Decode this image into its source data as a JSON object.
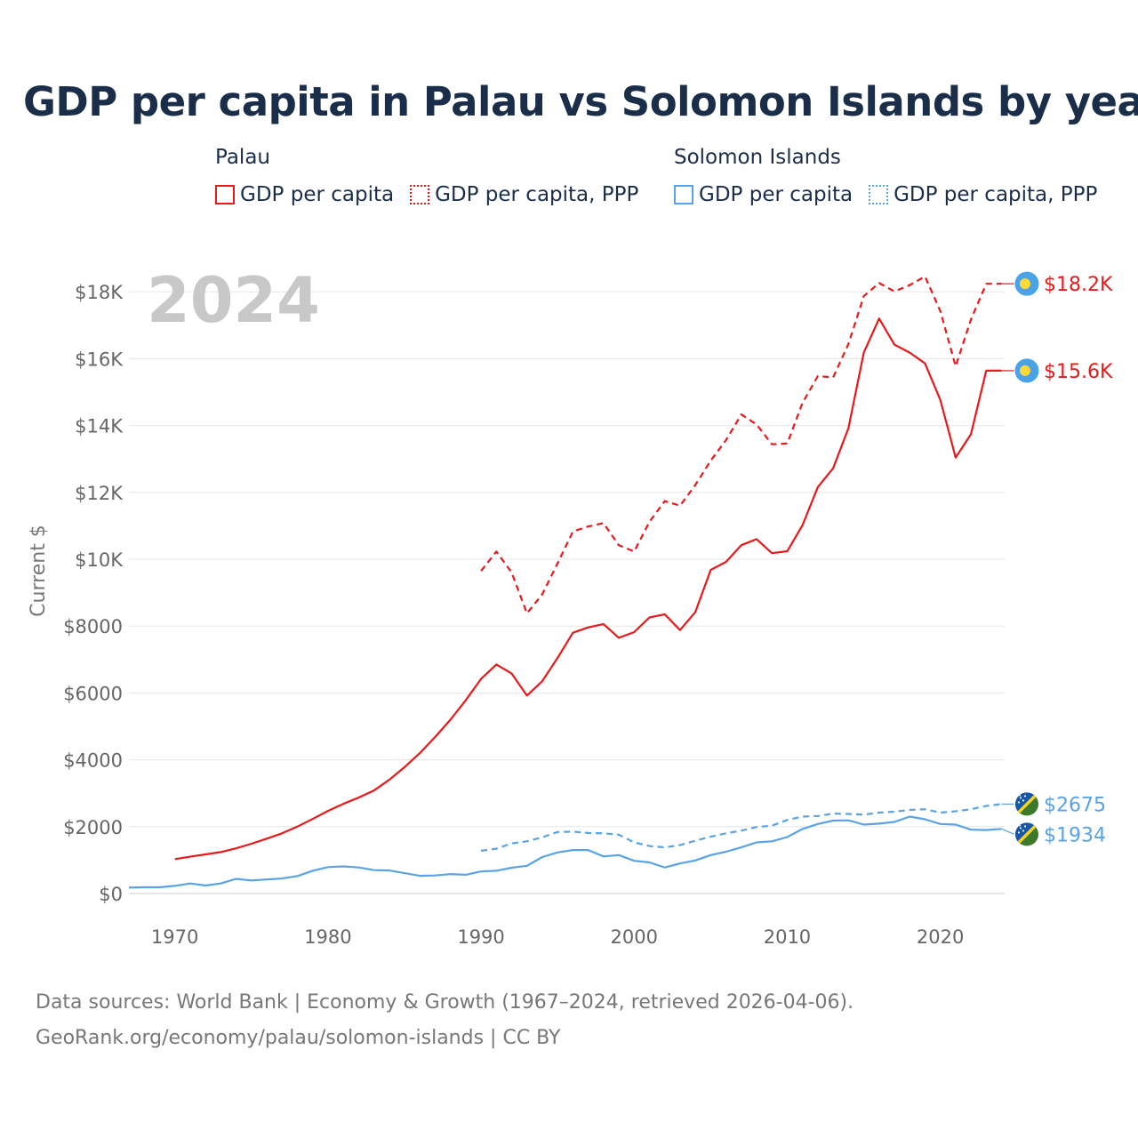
{
  "title": "GDP per capita in Palau vs Solomon Islands by year",
  "legend": {
    "groups": [
      {
        "name": "Palau",
        "items": [
          {
            "label": "GDP per capita",
            "color": "#e8191b",
            "style": "solid"
          },
          {
            "label": "GDP per capita, PPP",
            "color": "#e8191b",
            "style": "dotted"
          }
        ]
      },
      {
        "name": "Solomon Islands",
        "items": [
          {
            "label": "GDP per capita",
            "color": "#5aa2e6",
            "style": "solid"
          },
          {
            "label": "GDP per capita, PPP",
            "color": "#5aa2e6",
            "style": "dotted"
          }
        ]
      }
    ]
  },
  "source": {
    "line1": "Data sources: World Bank | Economy & Growth (1967–2024, retrieved 2026-04-06).",
    "line2": "GeoRank.org/economy/palau/solomon-islands | CC BY"
  },
  "chart_data": {
    "type": "line",
    "title": "GDP per capita in Palau vs Solomon Islands by year",
    "xlabel": "",
    "ylabel": "Current $",
    "xlim": [
      1967,
      2024
    ],
    "ylim": [
      0,
      19000
    ],
    "grid": true,
    "current_year": "2024",
    "x_ticks": [
      1970,
      1980,
      1990,
      2000,
      2010,
      2020
    ],
    "y_ticks": [
      {
        "value": 0,
        "label": "$0"
      },
      {
        "value": 2000,
        "label": "$2000"
      },
      {
        "value": 4000,
        "label": "$4000"
      },
      {
        "value": 6000,
        "label": "$6000"
      },
      {
        "value": 8000,
        "label": "$8000"
      },
      {
        "value": 10000,
        "label": "$10K"
      },
      {
        "value": 12000,
        "label": "$12K"
      },
      {
        "value": 14000,
        "label": "$14K"
      },
      {
        "value": 16000,
        "label": "$16K"
      },
      {
        "value": 18000,
        "label": "$18K"
      }
    ],
    "series": [
      {
        "name": "Palau GDP per capita",
        "color": "#e8191b",
        "dashed": false,
        "end_label": "$15.6K",
        "flag": "palau",
        "x": [
          1970,
          1971,
          1972,
          1973,
          1974,
          1975,
          1976,
          1977,
          1978,
          1979,
          1980,
          1981,
          1982,
          1983,
          1984,
          1985,
          1986,
          1987,
          1988,
          1989,
          1990,
          1991,
          1992,
          1993,
          1994,
          1995,
          1996,
          1997,
          1998,
          1999,
          2000,
          2001,
          2002,
          2003,
          2004,
          2005,
          2006,
          2007,
          2008,
          2009,
          2010,
          2011,
          2012,
          2013,
          2014,
          2015,
          2016,
          2017,
          2018,
          2019,
          2020,
          2021,
          2022,
          2023,
          2024
        ],
        "values": [
          1030,
          1100,
          1170,
          1240,
          1350,
          1490,
          1640,
          1800,
          2000,
          2230,
          2470,
          2680,
          2870,
          3080,
          3400,
          3780,
          4200,
          4680,
          5200,
          5780,
          6420,
          6850,
          6580,
          5920,
          6350,
          7050,
          7800,
          7960,
          8060,
          7650,
          7820,
          8260,
          8350,
          7880,
          8420,
          9680,
          9920,
          10420,
          10600,
          10180,
          10240,
          11020,
          12160,
          12720,
          13920,
          16180,
          17200,
          16420,
          16180,
          15860,
          14760,
          13040,
          13740,
          15640,
          15640
        ]
      },
      {
        "name": "Palau GDP per capita, PPP",
        "color": "#e8191b",
        "dashed": true,
        "end_label": "$18.2K",
        "flag": "palau",
        "x": [
          1990,
          1991,
          1992,
          1993,
          1994,
          1995,
          1996,
          1997,
          1998,
          1999,
          2000,
          2001,
          2002,
          2003,
          2004,
          2005,
          2006,
          2007,
          2008,
          2009,
          2010,
          2011,
          2012,
          2013,
          2014,
          2015,
          2016,
          2017,
          2018,
          2019,
          2020,
          2021,
          2022,
          2023,
          2024
        ],
        "values": [
          9650,
          10230,
          9600,
          8380,
          8950,
          9880,
          10830,
          10980,
          11080,
          10420,
          10230,
          11120,
          11740,
          11600,
          12220,
          12950,
          13560,
          14330,
          14030,
          13440,
          13460,
          14680,
          15480,
          15440,
          16440,
          17870,
          18260,
          18010,
          18200,
          18460,
          17420,
          15770,
          17170,
          18240,
          18240
        ]
      },
      {
        "name": "Solomon Islands GDP per capita",
        "color": "#5aa2e6",
        "dashed": false,
        "end_label": "$1934",
        "flag": "solomon",
        "x": [
          1967,
          1968,
          1969,
          1970,
          1971,
          1972,
          1973,
          1974,
          1975,
          1976,
          1977,
          1978,
          1979,
          1980,
          1981,
          1982,
          1983,
          1984,
          1985,
          1986,
          1987,
          1988,
          1989,
          1990,
          1991,
          1992,
          1993,
          1994,
          1995,
          1996,
          1997,
          1998,
          1999,
          2000,
          2001,
          2002,
          2003,
          2004,
          2005,
          2006,
          2007,
          2008,
          2009,
          2010,
          2011,
          2012,
          2013,
          2014,
          2015,
          2016,
          2017,
          2018,
          2019,
          2020,
          2021,
          2022,
          2023,
          2024
        ],
        "values": [
          175,
          185,
          185,
          230,
          300,
          240,
          300,
          440,
          390,
          420,
          450,
          520,
          680,
          790,
          810,
          780,
          700,
          690,
          610,
          530,
          540,
          580,
          560,
          660,
          680,
          770,
          830,
          1090,
          1230,
          1300,
          1300,
          1110,
          1150,
          980,
          930,
          780,
          900,
          990,
          1150,
          1250,
          1380,
          1530,
          1560,
          1690,
          1930,
          2080,
          2180,
          2190,
          2060,
          2090,
          2140,
          2300,
          2220,
          2080,
          2060,
          1910,
          1900,
          1934
        ]
      },
      {
        "name": "Solomon Islands GDP per capita, PPP",
        "color": "#5aa2e6",
        "dashed": true,
        "end_label": "$2675",
        "flag": "solomon",
        "x": [
          1990,
          1991,
          1992,
          1993,
          1994,
          1995,
          1996,
          1997,
          1998,
          1999,
          2000,
          2001,
          2002,
          2003,
          2004,
          2005,
          2006,
          2007,
          2008,
          2009,
          2010,
          2011,
          2012,
          2013,
          2014,
          2015,
          2016,
          2017,
          2018,
          2019,
          2020,
          2021,
          2022,
          2023,
          2024
        ],
        "values": [
          1280,
          1340,
          1500,
          1560,
          1680,
          1840,
          1850,
          1810,
          1800,
          1760,
          1530,
          1420,
          1380,
          1450,
          1580,
          1700,
          1800,
          1880,
          1990,
          2030,
          2200,
          2300,
          2320,
          2390,
          2380,
          2360,
          2420,
          2450,
          2500,
          2520,
          2420,
          2460,
          2520,
          2620,
          2675
        ]
      }
    ]
  }
}
